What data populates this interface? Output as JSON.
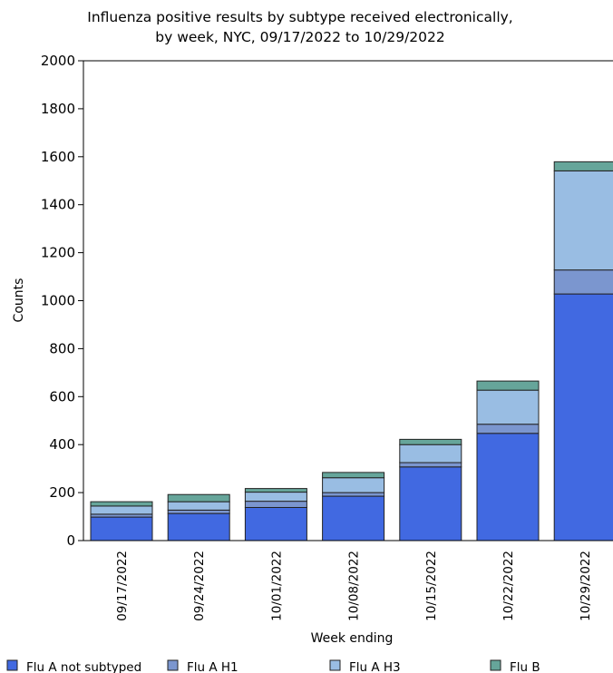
{
  "chart_data": {
    "type": "bar",
    "stacked": true,
    "title": "Influenza positive results by subtype received electronically,",
    "subtitle": "by week, NYC, 09/17/2022 to 10/29/2022",
    "xlabel": "Week ending",
    "ylabel": "Counts",
    "ylim": [
      0,
      2000
    ],
    "yticks": [
      0,
      200,
      400,
      600,
      800,
      1000,
      1200,
      1400,
      1600,
      1800,
      2000
    ],
    "categories": [
      "09/17/2022",
      "09/24/2022",
      "10/01/2022",
      "10/08/2022",
      "10/15/2022",
      "10/22/2022",
      "10/29/2022"
    ],
    "series": [
      {
        "name": "Flu A not subtyped",
        "color": "#4169e1",
        "values": [
          98,
          113,
          138,
          185,
          307,
          447,
          1028
        ]
      },
      {
        "name": "Flu A H1",
        "color": "#7b96cf",
        "values": [
          12,
          14,
          26,
          15,
          18,
          38,
          100
        ]
      },
      {
        "name": "Flu A H3",
        "color": "#99bde3",
        "values": [
          34,
          35,
          38,
          62,
          75,
          142,
          413
        ]
      },
      {
        "name": "Flu B",
        "color": "#66a59a",
        "values": [
          18,
          30,
          15,
          22,
          22,
          38,
          38
        ]
      }
    ],
    "legend_position": "bottom",
    "grid": false
  }
}
